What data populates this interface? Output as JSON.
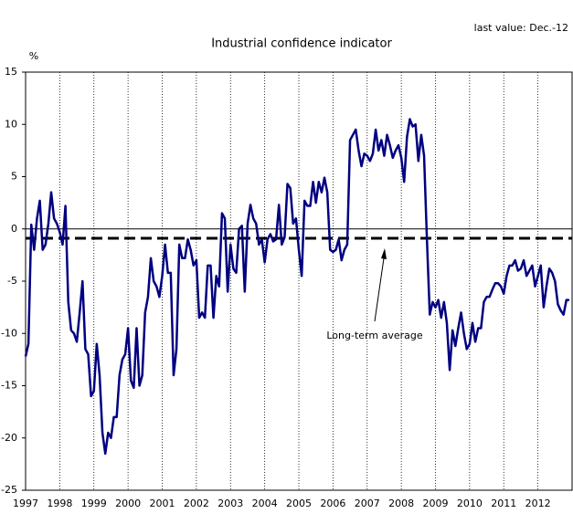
{
  "chart_data": {
    "type": "line",
    "title": "Industrial confidence indicator",
    "note": "last value: Dec.-12",
    "y_unit": "%",
    "annotation": "Long-term average",
    "long_term_average": -0.9,
    "xlim": [
      1997,
      2013
    ],
    "xticks": [
      1997,
      1998,
      1999,
      2000,
      2001,
      2002,
      2003,
      2004,
      2005,
      2006,
      2007,
      2008,
      2009,
      2010,
      2011,
      2012
    ],
    "ylim": [
      -25,
      15
    ],
    "yticks": [
      -25,
      -20,
      -15,
      -10,
      -5,
      0,
      5,
      10,
      15
    ],
    "grid": true,
    "x": [
      1997,
      1997.0833,
      1997.1667,
      1997.25,
      1997.3333,
      1997.4167,
      1997.5,
      1997.5833,
      1997.6667,
      1997.75,
      1997.8333,
      1997.9167,
      1998,
      1998.0833,
      1998.1667,
      1998.25,
      1998.3333,
      1998.4167,
      1998.5,
      1998.5833,
      1998.6667,
      1998.75,
      1998.8333,
      1998.9167,
      1999,
      1999.0833,
      1999.1667,
      1999.25,
      1999.3333,
      1999.4167,
      1999.5,
      1999.5833,
      1999.6667,
      1999.75,
      1999.8333,
      1999.9167,
      2000,
      2000.0833,
      2000.1667,
      2000.25,
      2000.3333,
      2000.4167,
      2000.5,
      2000.5833,
      2000.6667,
      2000.75,
      2000.8333,
      2000.9167,
      2001,
      2001.0833,
      2001.1667,
      2001.25,
      2001.3333,
      2001.4167,
      2001.5,
      2001.5833,
      2001.6667,
      2001.75,
      2001.8333,
      2001.9167,
      2002,
      2002.0833,
      2002.1667,
      2002.25,
      2002.3333,
      2002.4167,
      2002.5,
      2002.5833,
      2002.6667,
      2002.75,
      2002.8333,
      2002.9167,
      2003,
      2003.0833,
      2003.1667,
      2003.25,
      2003.3333,
      2003.4167,
      2003.5,
      2003.5833,
      2003.6667,
      2003.75,
      2003.8333,
      2003.9167,
      2004,
      2004.0833,
      2004.1667,
      2004.25,
      2004.3333,
      2004.4167,
      2004.5,
      2004.5833,
      2004.6667,
      2004.75,
      2004.8333,
      2004.9167,
      2005,
      2005.0833,
      2005.1667,
      2005.25,
      2005.3333,
      2005.4167,
      2005.5,
      2005.5833,
      2005.6667,
      2005.75,
      2005.8333,
      2005.9167,
      2006,
      2006.0833,
      2006.1667,
      2006.25,
      2006.3333,
      2006.4167,
      2006.5,
      2006.5833,
      2006.6667,
      2006.75,
      2006.8333,
      2006.9167,
      2007,
      2007.0833,
      2007.1667,
      2007.25,
      2007.3333,
      2007.4167,
      2007.5,
      2007.5833,
      2007.6667,
      2007.75,
      2007.8333,
      2007.9167,
      2008,
      2008.0833,
      2008.1667,
      2008.25,
      2008.3333,
      2008.4167,
      2008.5,
      2008.5833,
      2008.6667,
      2008.75,
      2008.8333,
      2008.9167,
      2009,
      2009.0833,
      2009.1667,
      2009.25,
      2009.3333,
      2009.4167,
      2009.5,
      2009.5833,
      2009.6667,
      2009.75,
      2009.8333,
      2009.9167,
      2010,
      2010.0833,
      2010.1667,
      2010.25,
      2010.3333,
      2010.4167,
      2010.5,
      2010.5833,
      2010.6667,
      2010.75,
      2010.8333,
      2010.9167,
      2011,
      2011.0833,
      2011.1667,
      2011.25,
      2011.3333,
      2011.4167,
      2011.5,
      2011.5833,
      2011.6667,
      2011.75,
      2011.8333,
      2011.9167,
      2012,
      2012.0833,
      2012.1667,
      2012.25,
      2012.3333,
      2012.4167,
      2012.5,
      2012.5833,
      2012.6667,
      2012.75,
      2012.8333,
      2012.9167
    ],
    "series": [
      {
        "name": "Industrial confidence indicator",
        "color": "#000080",
        "values": [
          -12.2,
          -11,
          0.4,
          -2,
          1,
          2.7,
          -2,
          -1.5,
          0.5,
          3.5,
          1,
          0.5,
          -0.3,
          -1.5,
          2.2,
          -7,
          -9.7,
          -10,
          -10.8,
          -8,
          -5,
          -11.5,
          -12,
          -16,
          -15.5,
          -11,
          -14,
          -19.5,
          -21.5,
          -19.5,
          -20,
          -18,
          -18,
          -14,
          -12.5,
          -12,
          -9.5,
          -14.5,
          -15.2,
          -9.5,
          -15,
          -14,
          -8,
          -6.5,
          -2.8,
          -5,
          -5.5,
          -6.5,
          -4.5,
          -1.5,
          -4.2,
          -4.2,
          -14,
          -11.5,
          -1.5,
          -2.8,
          -2.8,
          -1,
          -2,
          -3.5,
          -3,
          -8.5,
          -8,
          -8.5,
          -3.5,
          -3.5,
          -8.5,
          -4.5,
          -5.5,
          1.5,
          1,
          -6,
          -1.5,
          -3.8,
          -4.2,
          0,
          0.3,
          -6,
          0.5,
          2.3,
          1,
          0.5,
          -1.5,
          -1,
          -3.2,
          -1,
          -0.5,
          -1.2,
          -1,
          2.3,
          -1.5,
          -0.8,
          4.3,
          3.9,
          0.5,
          1,
          -2,
          -4.5,
          2.7,
          2.2,
          2.2,
          4.5,
          2.5,
          4.5,
          3.5,
          4.9,
          3.5,
          -2,
          -2.2,
          -2,
          -1,
          -3,
          -2,
          -1.5,
          8.5,
          9,
          9.5,
          7.5,
          6,
          7.2,
          7,
          6.5,
          7.2,
          9.5,
          7.5,
          8.5,
          7,
          9,
          8,
          6.8,
          7.5,
          8,
          6.8,
          4.5,
          8.8,
          10.5,
          9.8,
          10,
          6.5,
          9,
          7,
          -1,
          -8.2,
          -7,
          -7.5,
          -6.8,
          -8.5,
          -7,
          -9,
          -13.5,
          -9.7,
          -11.2,
          -9.5,
          -8,
          -10,
          -11.5,
          -11,
          -9,
          -10.8,
          -9.5,
          -9.5,
          -7,
          -6.5,
          -6.5,
          -5.8,
          -5.2,
          -5.2,
          -5.5,
          -6.2,
          -4.5,
          -3.5,
          -3.5,
          -3,
          -4,
          -3.8,
          -3,
          -4.5,
          -4,
          -3.5,
          -5.5,
          -4.5,
          -3.5,
          -7.5,
          -5.5,
          -3.8,
          -4.2,
          -5,
          -7.2,
          -7.8,
          -8.2,
          -6.8,
          -6.8
        ]
      }
    ]
  }
}
